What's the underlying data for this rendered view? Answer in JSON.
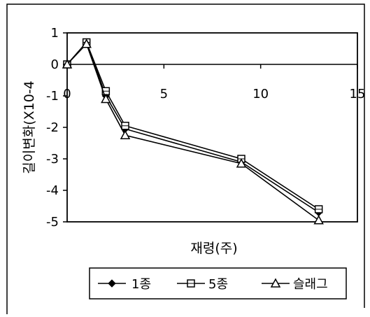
{
  "chart_data": {
    "type": "line",
    "title": "",
    "xlabel": "재령(주)",
    "ylabel": "길이변화(X10-4",
    "xlim": [
      0,
      15
    ],
    "ylim": [
      -5,
      1
    ],
    "x_ticks": [
      "0",
      "5",
      "10",
      "15"
    ],
    "y_ticks": [
      "1",
      "0",
      "-1",
      "-2",
      "-3",
      "-4",
      "-5"
    ],
    "grid": false,
    "legend_position": "bottom",
    "series": [
      {
        "name": "1종",
        "marker": "diamond",
        "x": [
          0,
          1,
          2,
          3,
          9,
          13
        ],
        "y": [
          0.0,
          0.7,
          -1.0,
          -2.05,
          -3.1,
          -4.7
        ]
      },
      {
        "name": "5종",
        "marker": "square",
        "x": [
          0,
          1,
          2,
          3,
          9,
          13
        ],
        "y": [
          0.0,
          0.7,
          -0.85,
          -1.95,
          -3.0,
          -4.6
        ]
      },
      {
        "name": "슬래그",
        "marker": "triangle",
        "x": [
          0,
          1,
          2,
          3,
          9,
          13
        ],
        "y": [
          0.0,
          0.65,
          -1.1,
          -2.25,
          -3.15,
          -4.95
        ]
      }
    ]
  }
}
